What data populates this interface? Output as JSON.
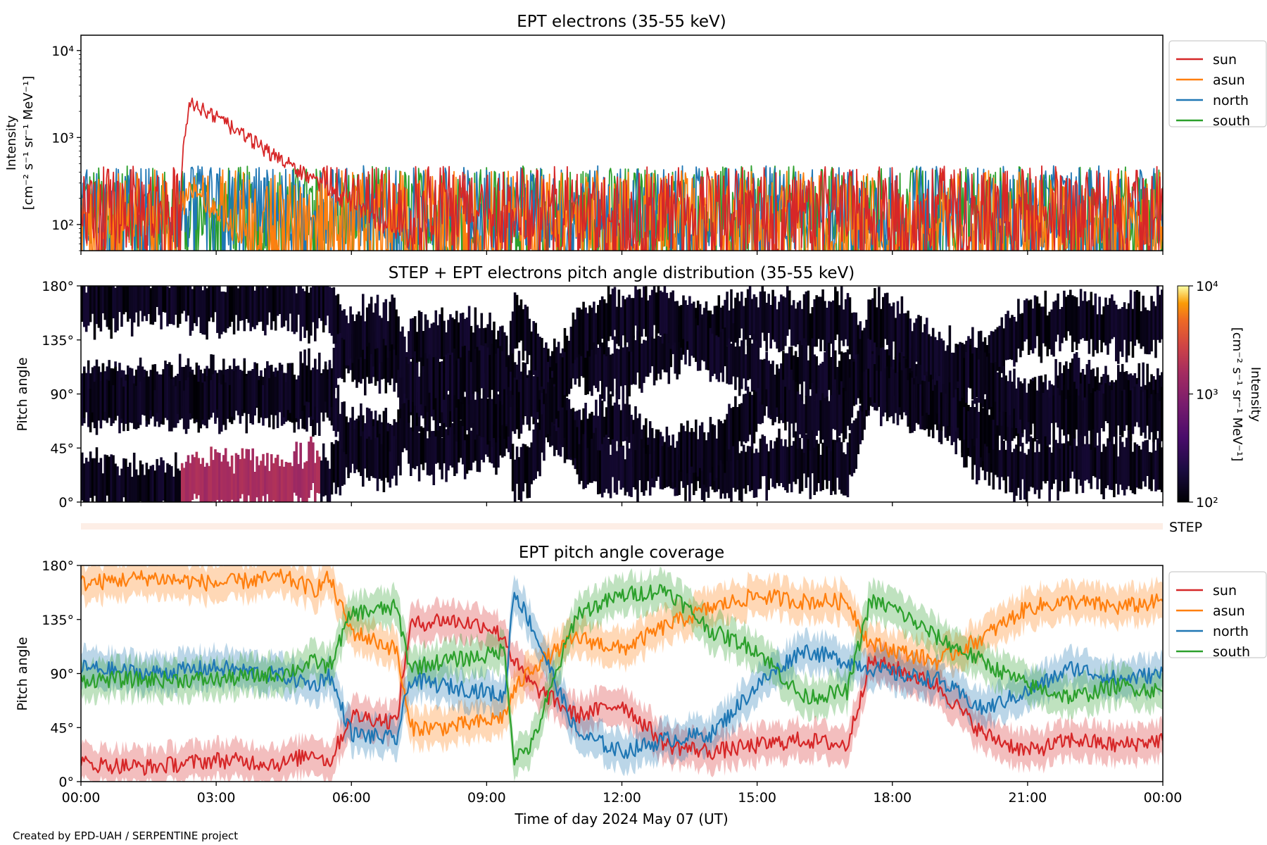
{
  "figure": {
    "credit": "Created by EPD-UAH / SERPENTINE project",
    "xlabel": "Time of day 2024 May 07 (UT)",
    "time_ticks": [
      "00:00",
      "03:00",
      "06:00",
      "09:00",
      "12:00",
      "15:00",
      "18:00",
      "21:00",
      "00:00"
    ],
    "colors": {
      "sun": "#d62728",
      "asun": "#ff7f0e",
      "north": "#1f77b4",
      "south": "#2ca02c"
    }
  },
  "chart_data": [
    {
      "type": "line",
      "title": "EPT electrons (35-55 keV)",
      "ylabel": "Intensity",
      "yunit": "[cm⁻² s⁻¹ sr⁻¹ MeV⁻¹]",
      "yscale": "log",
      "ylim": [
        50,
        15000
      ],
      "ytick_labels": [
        "10²",
        "10³",
        "10⁴"
      ],
      "ytick_values": [
        100,
        1000,
        10000
      ],
      "x_range_hours": [
        0,
        24
      ],
      "legend": [
        "sun",
        "asun",
        "north",
        "south"
      ],
      "legend_position": "outside-right",
      "series": [
        {
          "name": "sun",
          "color": "#d62728",
          "baseline": 150,
          "spread": 0.5,
          "event": {
            "start_hour": 2.2,
            "peak_hour": 2.45,
            "peak": 2600,
            "decay_hours": 1.3
          }
        },
        {
          "name": "asun",
          "color": "#ff7f0e",
          "baseline": 120,
          "spread": 0.55,
          "event": {
            "start_hour": 2.2,
            "peak_hour": 2.4,
            "peak": 260,
            "decay_hours": 0.8
          }
        },
        {
          "name": "north",
          "color": "#1f77b4",
          "baseline": 150,
          "spread": 0.5
        },
        {
          "name": "south",
          "color": "#2ca02c",
          "baseline": 150,
          "spread": 0.5
        }
      ]
    },
    {
      "type": "heatmap",
      "title": "STEP + EPT electrons pitch angle distribution (35-55 keV)",
      "ylabel": "Pitch angle",
      "ytick_labels": [
        "0°",
        "45°",
        "90°",
        "135°",
        "180°"
      ],
      "ytick_values": [
        0,
        45,
        90,
        135,
        180
      ],
      "ylim": [
        0,
        180
      ],
      "x_range_hours": [
        0,
        24
      ],
      "colorbar": {
        "label": "Intensity",
        "unit": "[cm⁻² s⁻¹ sr⁻¹ MeV⁻¹]",
        "scale": "log",
        "range": [
          100,
          10000
        ],
        "tick_labels": [
          "10²",
          "10³",
          "10⁴"
        ],
        "colormap": "inferno"
      },
      "enhancement": {
        "start_hour": 2.2,
        "end_hour": 5.3,
        "pitch_range": [
          0,
          35
        ],
        "intensity": [
          300,
          1100
        ]
      },
      "background_intensity": 150
    },
    {
      "type": "bar",
      "label": "STEP",
      "color": "#fdeee6",
      "x_range_hours": [
        0,
        24
      ]
    },
    {
      "type": "area",
      "title": "EPT pitch angle coverage",
      "ylabel": "Pitch angle",
      "ytick_labels": [
        "0°",
        "45°",
        "90°",
        "135°",
        "180°"
      ],
      "ytick_values": [
        0,
        45,
        90,
        135,
        180
      ],
      "ylim": [
        0,
        180
      ],
      "x_range_hours": [
        0,
        24
      ],
      "legend": [
        "sun",
        "asun",
        "north",
        "south"
      ],
      "legend_position": "outside-right",
      "band_halfwidth_deg": 15,
      "series": [
        {
          "name": "sun",
          "color": "#d62728",
          "x": [
            0,
            1.5,
            3,
            4.5,
            5.2,
            5.5,
            6,
            7,
            7.3,
            8,
            9,
            9.4,
            9.6,
            10,
            11,
            12,
            13,
            14,
            15,
            16,
            17,
            17.5,
            18,
            19,
            20,
            21,
            22,
            23,
            24
          ],
          "y": [
            15,
            12,
            18,
            15,
            25,
            15,
            55,
            50,
            130,
            135,
            130,
            120,
            100,
            80,
            55,
            65,
            30,
            25,
            30,
            35,
            30,
            100,
            95,
            80,
            40,
            25,
            35,
            30,
            35
          ]
        },
        {
          "name": "asun",
          "color": "#ff7f0e",
          "x": [
            0,
            1.5,
            3,
            4.5,
            5.2,
            5.5,
            6,
            7,
            7.3,
            8,
            9,
            9.4,
            9.6,
            10,
            11,
            12,
            13,
            14,
            15,
            16,
            17,
            17.5,
            18,
            19,
            20,
            21,
            22,
            23,
            24
          ],
          "y": [
            165,
            170,
            165,
            170,
            160,
            170,
            125,
            110,
            45,
            45,
            50,
            55,
            75,
            95,
            120,
            110,
            130,
            145,
            155,
            150,
            150,
            115,
            110,
            100,
            120,
            145,
            150,
            145,
            150
          ]
        },
        {
          "name": "north",
          "color": "#1f77b4",
          "x": [
            0,
            1.5,
            3,
            4.5,
            5.2,
            5.5,
            6,
            7,
            7.3,
            8,
            9,
            9.4,
            9.6,
            10,
            11,
            12,
            13,
            14,
            15,
            16,
            17,
            17.5,
            18,
            19,
            20,
            21,
            22,
            23,
            24
          ],
          "y": [
            95,
            90,
            95,
            88,
            80,
            90,
            40,
            35,
            85,
            80,
            75,
            70,
            160,
            130,
            40,
            25,
            35,
            40,
            80,
            110,
            100,
            95,
            90,
            85,
            60,
            75,
            95,
            85,
            90
          ]
        },
        {
          "name": "south",
          "color": "#2ca02c",
          "x": [
            0,
            1.5,
            3,
            4.5,
            5.2,
            5.5,
            6,
            7,
            7.3,
            8,
            9,
            9.4,
            9.6,
            10,
            11,
            12,
            13,
            14,
            15,
            16,
            17,
            17.5,
            18,
            19,
            20,
            21,
            22,
            23,
            24
          ],
          "y": [
            85,
            85,
            85,
            90,
            100,
            95,
            140,
            145,
            95,
            100,
            105,
            110,
            20,
            30,
            140,
            155,
            160,
            125,
            110,
            70,
            75,
            150,
            145,
            120,
            100,
            80,
            70,
            80,
            75
          ]
        }
      ]
    }
  ]
}
